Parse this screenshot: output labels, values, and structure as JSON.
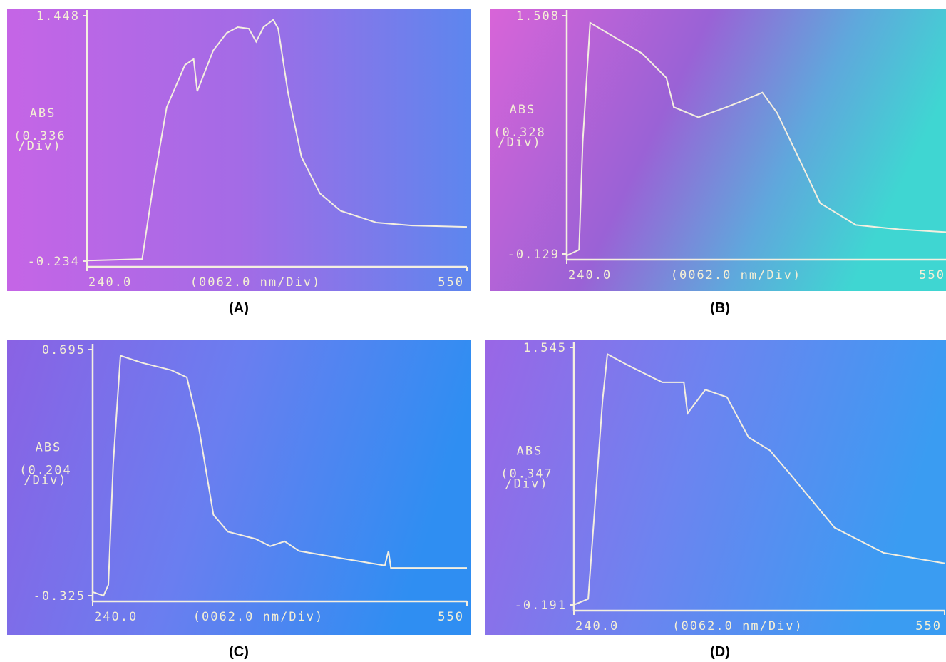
{
  "chart_data": [
    {
      "type": "line",
      "caption": "(A)",
      "y_label": "ABS",
      "y_div": [
        "(0.336",
        "/Div)"
      ],
      "x_label": "(0062.0 nm/Div)",
      "xlim": [
        240,
        550
      ],
      "ylim": [
        -0.234,
        1.448
      ],
      "yticks": [
        -0.234,
        1.448
      ],
      "xticks": [
        {
          "value": 240,
          "label": "240.0"
        },
        550
      ],
      "color": "#f4efe0",
      "x": [
        240,
        285,
        294,
        305,
        320,
        327,
        330,
        343,
        354,
        363,
        372,
        378,
        384,
        392,
        396,
        404,
        415,
        430,
        447,
        476,
        505,
        550
      ],
      "values": [
        -0.23,
        -0.22,
        0.28,
        0.82,
        1.11,
        1.15,
        0.93,
        1.21,
        1.33,
        1.37,
        1.36,
        1.27,
        1.37,
        1.42,
        1.36,
        0.92,
        0.48,
        0.23,
        0.11,
        0.03,
        0.01,
        0.0
      ]
    },
    {
      "type": "line",
      "caption": "(B)",
      "y_label": "ABS",
      "y_div": [
        "(0.328",
        "/Div)"
      ],
      "x_label": "(0062.0 nm/Div)",
      "xlim": [
        240,
        550
      ],
      "ylim": [
        -0.129,
        1.508
      ],
      "yticks": [
        -0.129,
        1.508
      ],
      "xticks": [
        {
          "value": 240,
          "label": "240.0"
        },
        550
      ],
      "color": "#f4efe0",
      "x": [
        240,
        250,
        253,
        259,
        277,
        301,
        321,
        327,
        347,
        370,
        385,
        399,
        411,
        428,
        446,
        475,
        510,
        550
      ],
      "values": [
        -0.14,
        -0.1,
        0.64,
        1.46,
        1.37,
        1.25,
        1.08,
        0.88,
        0.81,
        0.88,
        0.93,
        0.98,
        0.84,
        0.54,
        0.22,
        0.07,
        0.04,
        0.02
      ]
    },
    {
      "type": "line",
      "caption": "(C)",
      "y_label": "ABS",
      "y_div": [
        "(0.204",
        "/Div)"
      ],
      "x_label": "(0062.0 nm/Div)",
      "xlim": [
        240,
        550
      ],
      "ylim": [
        -0.325,
        0.695
      ],
      "yticks": [
        -0.325,
        0.695
      ],
      "xticks": [
        {
          "value": 240,
          "label": "240.0"
        },
        550
      ],
      "color": "#f4efe0",
      "x": [
        240,
        249,
        253,
        257,
        263,
        281,
        305,
        318,
        328,
        340,
        352,
        375,
        387,
        399,
        411,
        446,
        482,
        485,
        487,
        517,
        550
      ],
      "values": [
        -0.31,
        -0.325,
        -0.28,
        0.22,
        0.67,
        0.64,
        0.61,
        0.58,
        0.37,
        0.01,
        -0.06,
        -0.09,
        -0.12,
        -0.1,
        -0.14,
        -0.17,
        -0.2,
        -0.14,
        -0.21,
        -0.21,
        -0.21
      ]
    },
    {
      "type": "line",
      "caption": "(D)",
      "y_label": "ABS",
      "y_div": [
        "(0.347",
        "/Div)"
      ],
      "x_label": "(0062.0 nm/Div)",
      "xlim": [
        240,
        550
      ],
      "ylim": [
        -0.191,
        1.545
      ],
      "yticks": [
        -0.191,
        1.545
      ],
      "xticks": [
        {
          "value": 240,
          "label": "240.0"
        },
        550
      ],
      "color": "#f4efe0",
      "x": [
        240,
        252,
        258,
        264,
        268,
        284,
        314,
        332,
        335,
        350,
        368,
        386,
        404,
        422,
        458,
        499,
        550
      ],
      "values": [
        -0.19,
        -0.15,
        0.52,
        1.19,
        1.5,
        1.43,
        1.31,
        1.31,
        1.1,
        1.26,
        1.21,
        0.94,
        0.85,
        0.68,
        0.33,
        0.16,
        0.09
      ]
    }
  ]
}
